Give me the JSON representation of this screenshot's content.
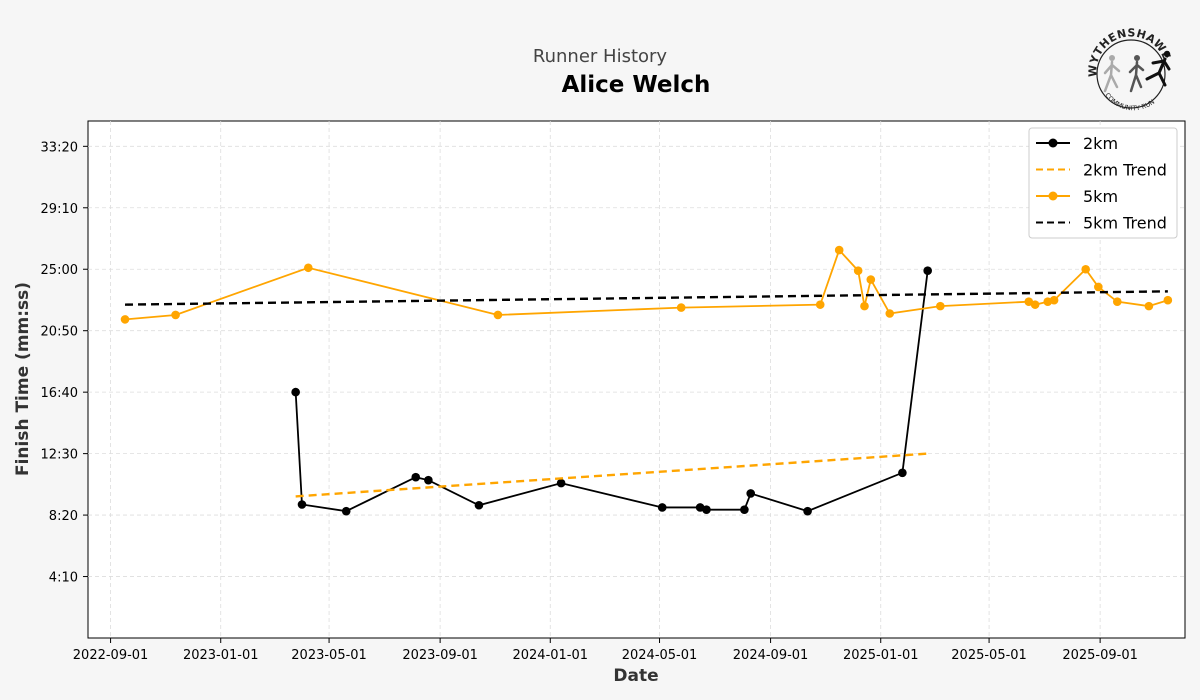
{
  "header": {
    "subtitle": "Runner History",
    "title": "Alice Welch"
  },
  "logo": {
    "top_text": "WYTHENSHAWE",
    "bottom_text": "COMMUNITY RUN"
  },
  "chart_data": {
    "type": "line",
    "xlabel": "Date",
    "ylabel": "Finish Time (mm:ss)",
    "x_ticks": [
      "2022-09-01",
      "2023-01-01",
      "2023-05-01",
      "2023-09-01",
      "2024-01-01",
      "2024-05-01",
      "2024-09-01",
      "2025-01-01",
      "2025-05-01",
      "2025-09-01"
    ],
    "y_ticks": [
      "4:10",
      "8:20",
      "12:30",
      "16:40",
      "20:50",
      "25:00",
      "29:10",
      "33:20"
    ],
    "xlim": [
      "2022-08-07",
      "2025-12-04"
    ],
    "ylim": [
      0,
      35.05
    ],
    "grid": true,
    "legend_position": "upper-right",
    "legend": [
      "2km",
      "2km Trend",
      "5km",
      "5km Trend"
    ],
    "series": [
      {
        "name": "2km",
        "style": "line-marker",
        "color": "#000000",
        "x": [
          "2023-03-25",
          "2023-04-01",
          "2023-05-20",
          "2023-08-05",
          "2023-08-19",
          "2023-10-14",
          "2024-01-13",
          "2024-05-04",
          "2024-06-15",
          "2024-06-22",
          "2024-08-03",
          "2024-08-10",
          "2024-10-12",
          "2025-01-25",
          "2025-02-22"
        ],
        "y": [
          16.67,
          9.05,
          8.6,
          10.9,
          10.7,
          9.0,
          10.5,
          8.85,
          8.85,
          8.7,
          8.7,
          9.8,
          8.6,
          11.2,
          24.9
        ]
      },
      {
        "name": "2km Trend",
        "style": "dashed",
        "color": "#ffa500",
        "x": [
          "2023-03-25",
          "2025-02-22"
        ],
        "y": [
          9.6,
          12.5
        ]
      },
      {
        "name": "5km",
        "style": "line-marker",
        "color": "#ffa500",
        "x": [
          "2022-09-17",
          "2022-11-12",
          "2023-04-08",
          "2023-11-04",
          "2024-05-25",
          "2024-10-26",
          "2024-11-16",
          "2024-12-07",
          "2024-12-14",
          "2024-12-21",
          "2025-01-11",
          "2025-03-08",
          "2025-06-14",
          "2025-06-21",
          "2025-07-05",
          "2025-07-12",
          "2025-08-16",
          "2025-08-30",
          "2025-09-20",
          "2025-10-25",
          "2025-11-15"
        ],
        "y": [
          21.6,
          21.9,
          25.1,
          21.9,
          22.4,
          22.6,
          26.3,
          24.9,
          22.5,
          24.3,
          22.0,
          22.5,
          22.8,
          22.6,
          22.8,
          22.9,
          25.0,
          23.8,
          22.8,
          22.5,
          22.9
        ]
      },
      {
        "name": "5km Trend",
        "style": "dashed",
        "color": "#000000",
        "x": [
          "2022-09-17",
          "2025-11-15"
        ],
        "y": [
          22.6,
          23.5
        ]
      }
    ]
  }
}
